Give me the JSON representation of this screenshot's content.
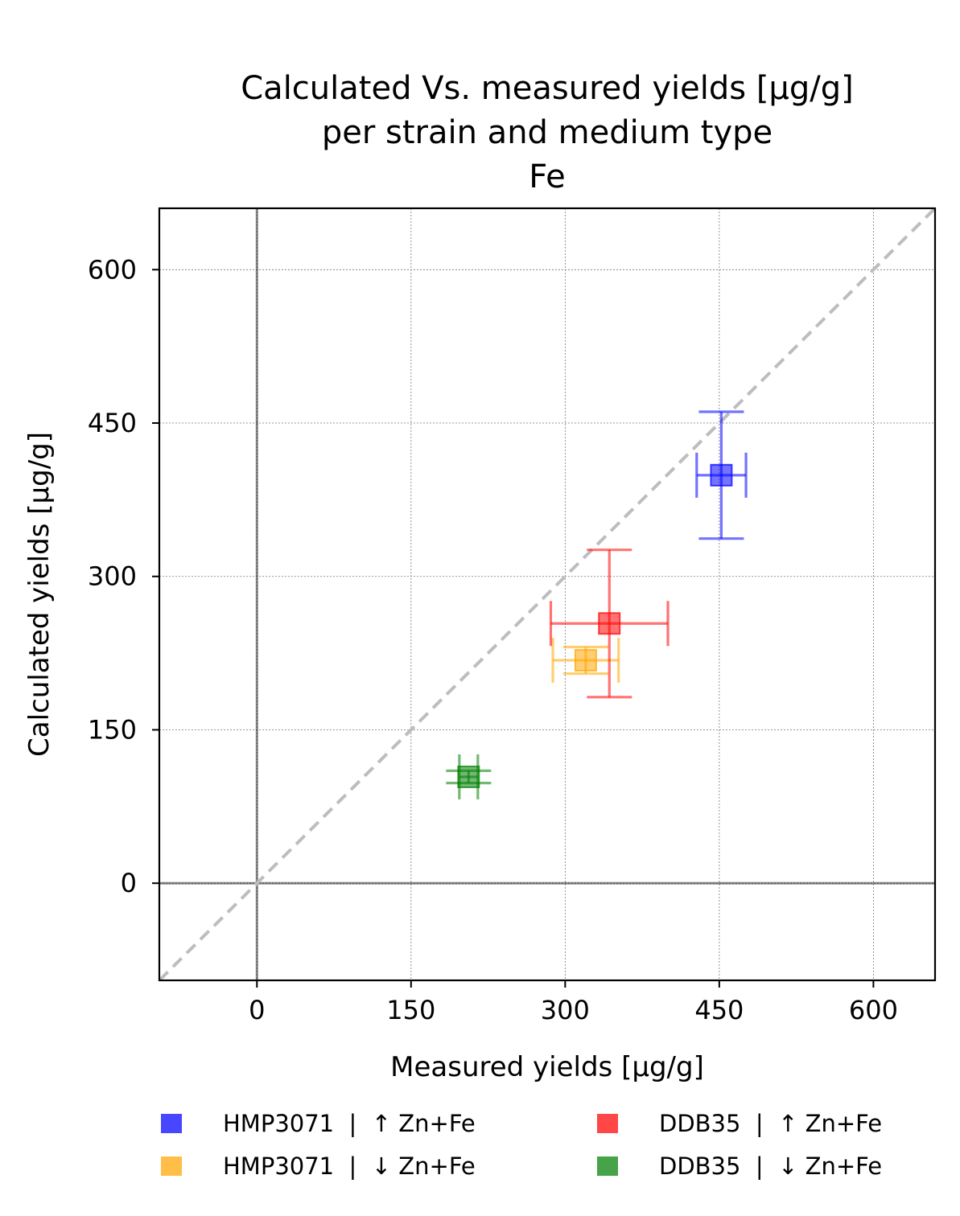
{
  "chart_data": {
    "type": "scatter",
    "title": [
      "Calculated Vs. measured yields [µg/g]",
      "per strain and medium type",
      "Fe"
    ],
    "xlabel": "Measured yields [µg/g]",
    "ylabel": "Calculated yields [µg/g]",
    "xlim": [
      -95,
      660
    ],
    "ylim": [
      -95,
      660
    ],
    "xticks": [
      0,
      150,
      300,
      450,
      600
    ],
    "yticks": [
      0,
      150,
      300,
      450,
      600
    ],
    "grid": true,
    "identity_line": true,
    "legend_position": "bottom",
    "series": [
      {
        "name": "HMP3071  |  ↑ Zn+Fe",
        "color": "#0000ff",
        "x": 452,
        "y": 399,
        "xerr": 24,
        "yerr": 62
      },
      {
        "name": "HMP3071  |  ↓ Zn+Fe",
        "color": "#ffa500",
        "x": 320,
        "y": 218,
        "xerr": 32,
        "yerr": 13
      },
      {
        "name": "DDB35  |  ↑ Zn+Fe",
        "color": "#ff0000",
        "x": 343,
        "y": 254,
        "xerr": 57,
        "yerr": 72
      },
      {
        "name": "DDB35  |  ↓ Zn+Fe",
        "color": "#008000",
        "x": 206,
        "y": 104,
        "xerr": 9,
        "yerr": 6
      }
    ]
  }
}
